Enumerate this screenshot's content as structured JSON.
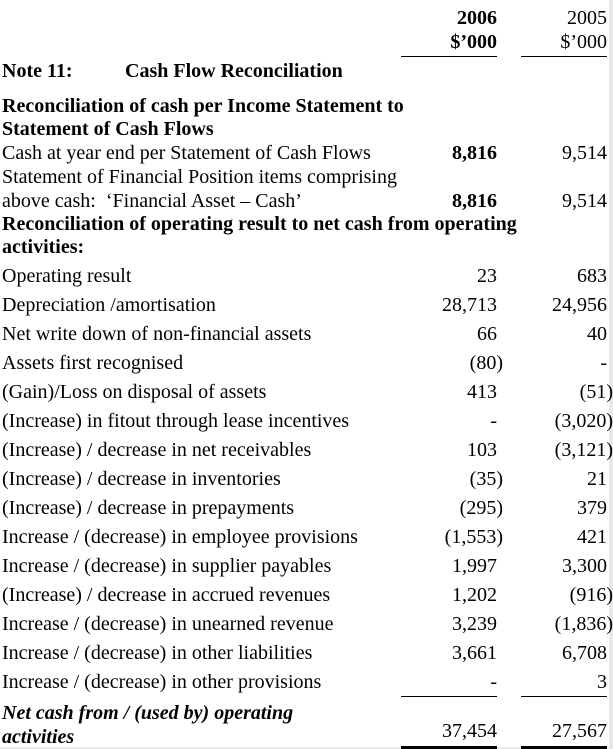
{
  "doc": {
    "columns": {
      "year1": "2006",
      "year2": "2005",
      "units1": "$’000",
      "units2": "$’000"
    },
    "note": {
      "label": "Note 11:",
      "title": "Cash Flow Reconciliation"
    },
    "section1": {
      "line1": "Reconciliation of cash per Income Statement to",
      "line2": "Statement of Cash Flows"
    },
    "cash_rows": [
      {
        "label": "Cash at year end per Statement of Cash Flows",
        "v2006": "8,816",
        "v2005": "9,514"
      },
      {
        "label": "Statement of Financial Position items comprising",
        "v2006": "",
        "v2005": ""
      },
      {
        "label": "above cash:  ‘Financial Asset – Cash’",
        "v2006": "8,816",
        "v2005": "9,514"
      }
    ],
    "section2": {
      "line1": "Reconciliation of operating result to net cash from operating",
      "line2": "activities:"
    },
    "items": [
      {
        "label": "Operating result",
        "v2006": "23",
        "v2005": "683"
      },
      {
        "label": "Depreciation /amortisation",
        "v2006": "28,713",
        "v2005": "24,956"
      },
      {
        "label": "Net write down of non-financial assets",
        "v2006": "66",
        "v2005": "40"
      },
      {
        "label": "Assets first recognised",
        "v2006": "(80)",
        "v2005": "-"
      },
      {
        "label": "(Gain)/Loss on disposal of assets",
        "v2006": "413",
        "v2005": "(51)"
      },
      {
        "label": "(Increase) in fitout through lease incentives",
        "v2006": "-",
        "v2005": "(3,020)"
      },
      {
        "label": "(Increase) / decrease in net receivables",
        "v2006": "103",
        "v2005": "(3,121)"
      },
      {
        "label": "(Increase) / decrease in inventories",
        "v2006": "(35)",
        "v2005": "21"
      },
      {
        "label": "(Increase) / decrease in prepayments",
        "v2006": "(295)",
        "v2005": "379"
      },
      {
        "label": "Increase / (decrease) in employee provisions",
        "v2006": "(1,553)",
        "v2005": "421"
      },
      {
        "label": "Increase / (decrease) in supplier payables",
        "v2006": "1,997",
        "v2005": "3,300"
      },
      {
        "label": "(Increase) / decrease in accrued revenues",
        "v2006": "1,202",
        "v2005": "(916)"
      },
      {
        "label": "Increase / (decrease) in unearned revenue",
        "v2006": "3,239",
        "v2005": "(1,836)"
      },
      {
        "label": "Increase / (decrease) in other liabilities",
        "v2006": "3,661",
        "v2005": "6,708"
      },
      {
        "label": "Increase / (decrease) in other provisions",
        "v2006": "-",
        "v2005": "3"
      }
    ],
    "total": {
      "label_line1": "Net cash from / (used by) operating",
      "label_line2": "activities",
      "v2006": "37,454",
      "v2005": "27,567"
    }
  }
}
